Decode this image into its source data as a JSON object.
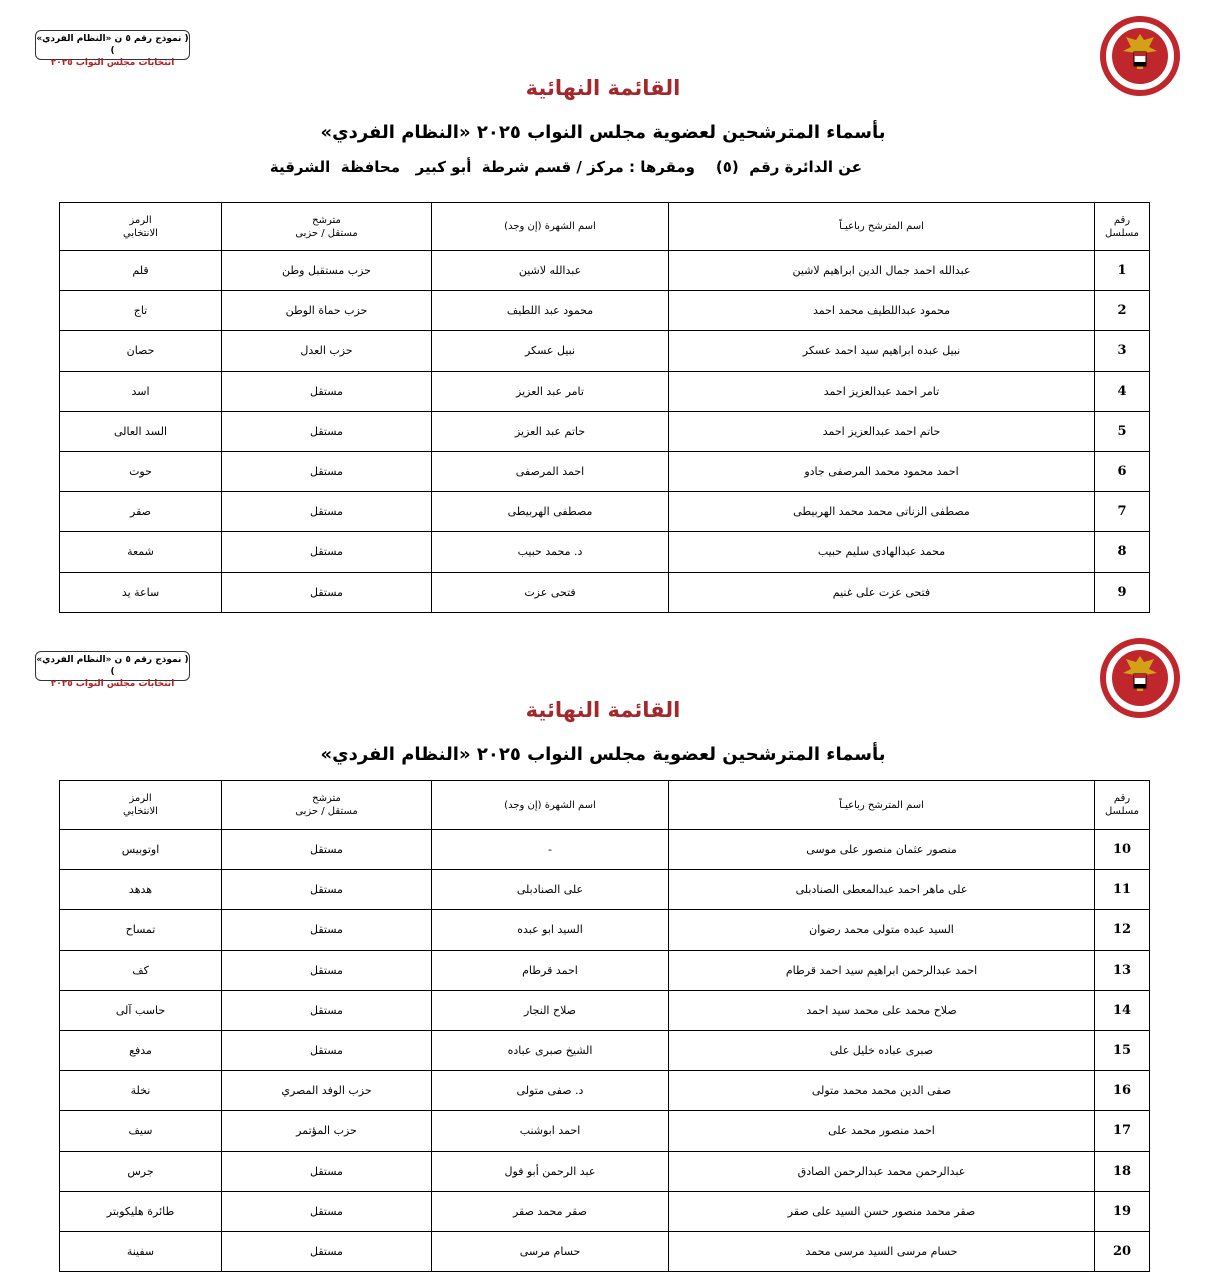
{
  "form_box": {
    "line1": "( نموذج رقم ٥ ن «النظام الفردي» )",
    "line2": "انتخابات مجلس النواب ٢٠٢٥"
  },
  "logo_text": "National Election Authority Egypt",
  "colors": {
    "title": "#a3282c",
    "logo": "#c0272d"
  },
  "page1": {
    "title": "القائمة النهائية",
    "subtitle": "بأسماء المترشحين لعضوية مجلس النواب ٢٠٢٥ «النظام الفردي»",
    "district": "عن الدائرة رقم  (٥)    ومقرها : مركز / قسم شرطة  أبو كبير   محافظة  الشرقية"
  },
  "page2": {
    "title": "القائمة النهائية",
    "subtitle": "بأسماء المترشحين لعضوية مجلس النواب ٢٠٢٥ «النظام الفردي»"
  },
  "headers": {
    "serial": [
      "رقم",
      "مسلسل"
    ],
    "name": "اسم المترشح رباعيـاً",
    "nickname": "اسم الشهرة (إن وجد)",
    "type": [
      "مترشح",
      "مستقل / حزبى"
    ],
    "symbol": [
      "الرمز",
      "الانتخابي"
    ]
  },
  "table1": [
    [
      "1",
      "عبدالله احمد جمال الدين ابراهيم لاشين",
      "عبدالله لاشين",
      "حزب مستقبل وطن",
      "قلم"
    ],
    [
      "2",
      "محمود عبداللطيف محمد احمد",
      "محمود عبد اللطيف",
      "حزب حماة الوطن",
      "تاج"
    ],
    [
      "3",
      "نبيل عبده ابراهيم سيد احمد عسكر",
      "نبيل عسكر",
      "حزب العدل",
      "حصان"
    ],
    [
      "4",
      "تامر احمد عبدالعزيز احمد",
      "تامر عبد العزيز",
      "مستقل",
      "اسد"
    ],
    [
      "5",
      "حاتم احمد عبدالعزيز احمد",
      "حاتم عبد العزيز",
      "مستقل",
      "السد العالى"
    ],
    [
      "6",
      "احمد محمود محمد المرصفى جادو",
      "احمد المرصفى",
      "مستقل",
      "حوت"
    ],
    [
      "7",
      "مصطفى الزناتى محمد محمد الهربيطى",
      "مصطفى الهربيطى",
      "مستقل",
      "صقر"
    ],
    [
      "8",
      "محمد عبدالهادى سليم حبيب",
      "د. محمد حبيب",
      "مستقل",
      "شمعة"
    ],
    [
      "9",
      "فتحى عزت على غنيم",
      "فتحى عزت",
      "مستقل",
      "ساعة يد"
    ]
  ],
  "table2": [
    [
      "10",
      "منصور عثمان منصور على موسى",
      "-",
      "مستقل",
      "اوتوبيس"
    ],
    [
      "11",
      "على ماهر احمد عبدالمعطى الصنادبلى",
      "على الصنادبلى",
      "مستقل",
      "هدهد"
    ],
    [
      "12",
      "السيد عبده متولى محمد رضوان",
      "السيد ابو عبده",
      "مستقل",
      "تمساح"
    ],
    [
      "13",
      "احمد عبدالرحمن ابراهيم سيد احمد قرطام",
      "احمد قرطام",
      "مستقل",
      "كف"
    ],
    [
      "14",
      "صلاح محمد على محمد سيد احمد",
      "صلاح النجار",
      "مستقل",
      "حاسب آلى"
    ],
    [
      "15",
      "صبرى عباده خليل على",
      "الشيخ صبرى عباده",
      "مستقل",
      "مدفع"
    ],
    [
      "16",
      "صفى الدين محمد محمد متولى",
      "د. صفى متولى",
      "حزب الوفد المصري",
      "نخلة"
    ],
    [
      "17",
      "احمد منصور محمد على",
      "احمد ابوشنب",
      "حزب المؤتمر",
      "سيف"
    ],
    [
      "18",
      "عبدالرحمن محمد عبدالرحمن الصادق",
      "عبد الرحمن أبو فول",
      "مستقل",
      "جرس"
    ],
    [
      "19",
      "صقر محمد منصور حسن السيد على صقر",
      "صقر محمد صقر",
      "مستقل",
      "طائرة هليكوبتر"
    ],
    [
      "20",
      "حسام مرسى السيد مرسى محمد",
      "حسام مرسى",
      "مستقل",
      "سفينة"
    ]
  ]
}
